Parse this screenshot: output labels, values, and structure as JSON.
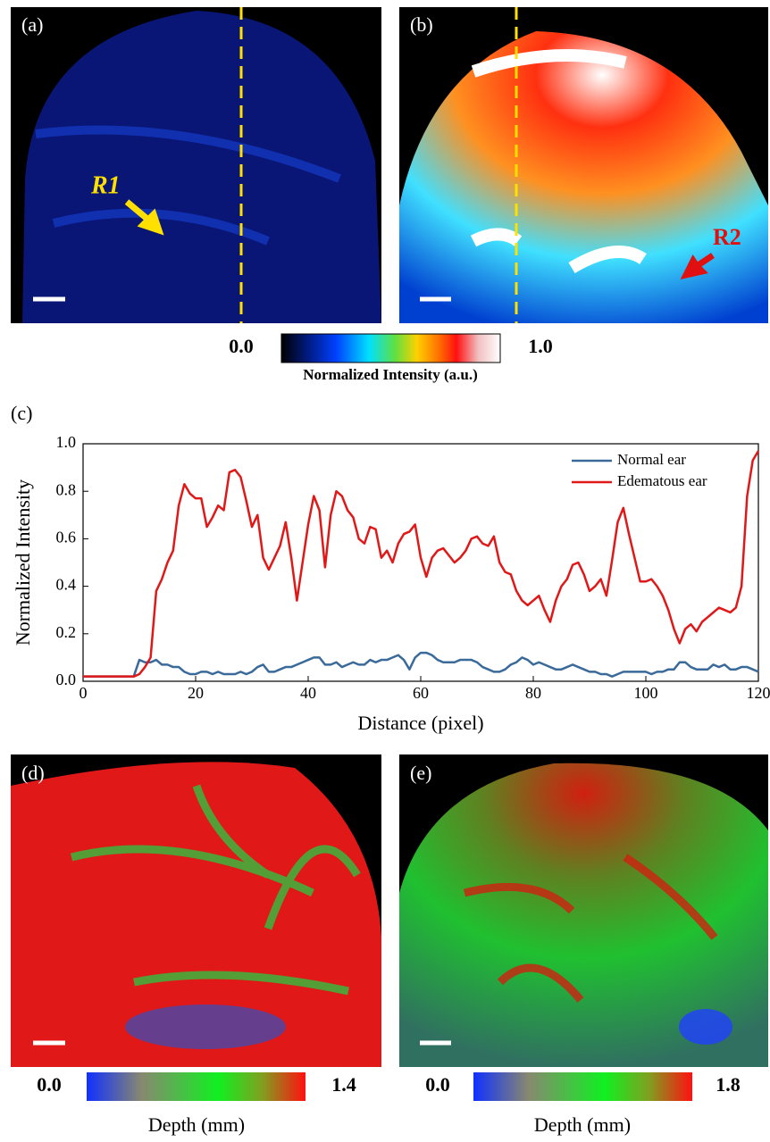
{
  "panels": {
    "a": {
      "label": "(a)",
      "annotation": "R1"
    },
    "b": {
      "label": "(b)",
      "annotation": "R2"
    },
    "c": {
      "label": "(c)"
    },
    "d": {
      "label": "(d)"
    },
    "e": {
      "label": "(e)"
    }
  },
  "colorbars": {
    "intensity": {
      "min": "0.0",
      "max": "1.0",
      "label": "Normalized Intensity (a.u.)"
    },
    "depth_d": {
      "min": "0.0",
      "max": "1.4",
      "label": "Depth (mm)"
    },
    "depth_e": {
      "min": "0.0",
      "max": "1.8",
      "label": "Depth (mm)"
    }
  },
  "chart_data": {
    "type": "line",
    "xlabel": "Distance (pixel)",
    "ylabel": "Normalized Intensity",
    "x": [
      0,
      1,
      2,
      3,
      4,
      5,
      6,
      7,
      8,
      9,
      10,
      11,
      12,
      13,
      14,
      15,
      16,
      17,
      18,
      19,
      20,
      21,
      22,
      23,
      24,
      25,
      26,
      27,
      28,
      29,
      30,
      31,
      32,
      33,
      34,
      35,
      36,
      37,
      38,
      39,
      40,
      41,
      42,
      43,
      44,
      45,
      46,
      47,
      48,
      49,
      50,
      51,
      52,
      53,
      54,
      55,
      56,
      57,
      58,
      59,
      60,
      61,
      62,
      63,
      64,
      65,
      66,
      67,
      68,
      69,
      70,
      71,
      72,
      73,
      74,
      75,
      76,
      77,
      78,
      79,
      80,
      81,
      82,
      83,
      84,
      85,
      86,
      87,
      88,
      89,
      90,
      91,
      92,
      93,
      94,
      95,
      96,
      97,
      98,
      99,
      100,
      101,
      102,
      103,
      104,
      105,
      106,
      107,
      108,
      109,
      110,
      111,
      112,
      113,
      114,
      115,
      116,
      117,
      118,
      119,
      120
    ],
    "series": [
      {
        "name": "Normal ear",
        "color": "#3a6a9a",
        "values": [
          0.02,
          0.02,
          0.02,
          0.02,
          0.02,
          0.02,
          0.02,
          0.02,
          0.02,
          0.02,
          0.09,
          0.08,
          0.08,
          0.09,
          0.07,
          0.07,
          0.06,
          0.06,
          0.04,
          0.03,
          0.03,
          0.04,
          0.04,
          0.03,
          0.04,
          0.03,
          0.03,
          0.03,
          0.04,
          0.03,
          0.04,
          0.06,
          0.07,
          0.04,
          0.04,
          0.05,
          0.06,
          0.06,
          0.07,
          0.08,
          0.09,
          0.1,
          0.1,
          0.07,
          0.07,
          0.08,
          0.06,
          0.07,
          0.08,
          0.07,
          0.07,
          0.09,
          0.08,
          0.09,
          0.09,
          0.1,
          0.11,
          0.09,
          0.05,
          0.1,
          0.12,
          0.12,
          0.11,
          0.09,
          0.08,
          0.08,
          0.08,
          0.09,
          0.09,
          0.09,
          0.08,
          0.06,
          0.05,
          0.04,
          0.04,
          0.05,
          0.07,
          0.08,
          0.1,
          0.09,
          0.07,
          0.08,
          0.07,
          0.06,
          0.05,
          0.05,
          0.06,
          0.07,
          0.06,
          0.05,
          0.04,
          0.04,
          0.03,
          0.03,
          0.02,
          0.03,
          0.04,
          0.04,
          0.04,
          0.04,
          0.04,
          0.03,
          0.04,
          0.04,
          0.05,
          0.05,
          0.08,
          0.08,
          0.06,
          0.05,
          0.05,
          0.05,
          0.07,
          0.06,
          0.07,
          0.05,
          0.05,
          0.06,
          0.06,
          0.05,
          0.04
        ]
      },
      {
        "name": "Edematous ear",
        "color": "#e01818",
        "values": [
          0.02,
          0.02,
          0.02,
          0.02,
          0.02,
          0.02,
          0.02,
          0.02,
          0.02,
          0.02,
          0.03,
          0.06,
          0.1,
          0.38,
          0.43,
          0.5,
          0.55,
          0.74,
          0.83,
          0.79,
          0.77,
          0.77,
          0.65,
          0.69,
          0.74,
          0.72,
          0.88,
          0.89,
          0.86,
          0.76,
          0.65,
          0.7,
          0.52,
          0.47,
          0.52,
          0.57,
          0.67,
          0.52,
          0.34,
          0.5,
          0.66,
          0.78,
          0.72,
          0.48,
          0.7,
          0.8,
          0.78,
          0.72,
          0.69,
          0.6,
          0.58,
          0.65,
          0.64,
          0.52,
          0.55,
          0.5,
          0.58,
          0.62,
          0.63,
          0.66,
          0.52,
          0.44,
          0.52,
          0.55,
          0.56,
          0.53,
          0.5,
          0.52,
          0.55,
          0.6,
          0.61,
          0.58,
          0.57,
          0.61,
          0.5,
          0.46,
          0.45,
          0.38,
          0.34,
          0.32,
          0.34,
          0.36,
          0.3,
          0.25,
          0.34,
          0.4,
          0.43,
          0.49,
          0.5,
          0.45,
          0.38,
          0.4,
          0.43,
          0.36,
          0.51,
          0.67,
          0.73,
          0.62,
          0.52,
          0.42,
          0.42,
          0.43,
          0.4,
          0.36,
          0.3,
          0.22,
          0.16,
          0.22,
          0.24,
          0.21,
          0.25,
          0.27,
          0.29,
          0.31,
          0.3,
          0.29,
          0.31,
          0.4,
          0.78,
          0.93,
          0.97
        ]
      }
    ],
    "xlim": [
      0,
      120
    ],
    "xticks": [
      0,
      20,
      40,
      60,
      80,
      100,
      120
    ],
    "ylim": [
      0,
      1
    ],
    "yticks": [
      {
        "value": 0,
        "label": "0.0"
      },
      0.2,
      0.4,
      0.6,
      0.8,
      {
        "value": 1,
        "label": "1.0"
      }
    ],
    "legend": "upper right"
  }
}
